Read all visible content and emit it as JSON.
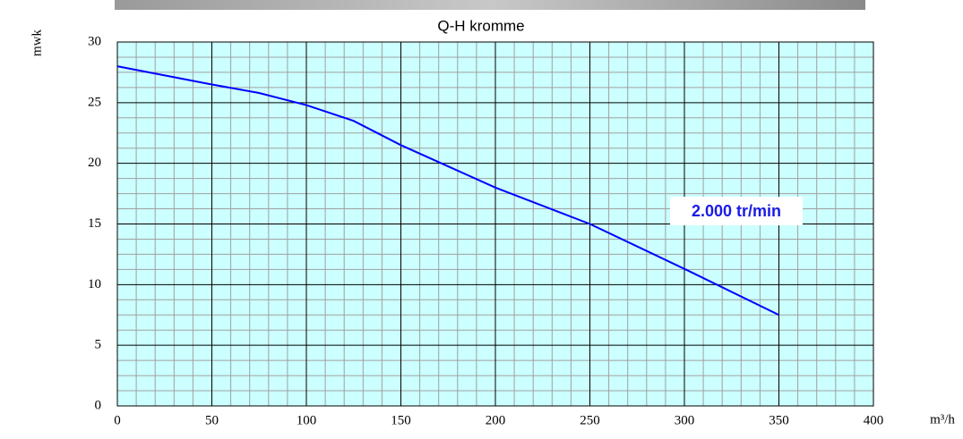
{
  "chart_data": {
    "type": "line",
    "title": "Q-H kromme",
    "y_label": "mwk",
    "x_label": "m³/h",
    "annotation": "2.000 tr/min",
    "x": [
      0,
      50,
      75,
      100,
      125,
      150,
      200,
      250,
      300,
      350
    ],
    "series": [
      {
        "name": "2.000 tr/min",
        "color": "#0000ff",
        "values": [
          28,
          26.5,
          25.8,
          24.8,
          23.5,
          21.5,
          18,
          15,
          11.3,
          7.5
        ]
      }
    ],
    "xlim": [
      0,
      400
    ],
    "xticks": [
      0,
      50,
      100,
      150,
      200,
      250,
      300,
      350,
      400
    ],
    "ylim": [
      0,
      30
    ],
    "yticks": [
      0,
      5,
      10,
      15,
      20,
      25,
      30
    ],
    "grid": true,
    "minor_grid": true,
    "background": "#ccffff"
  }
}
